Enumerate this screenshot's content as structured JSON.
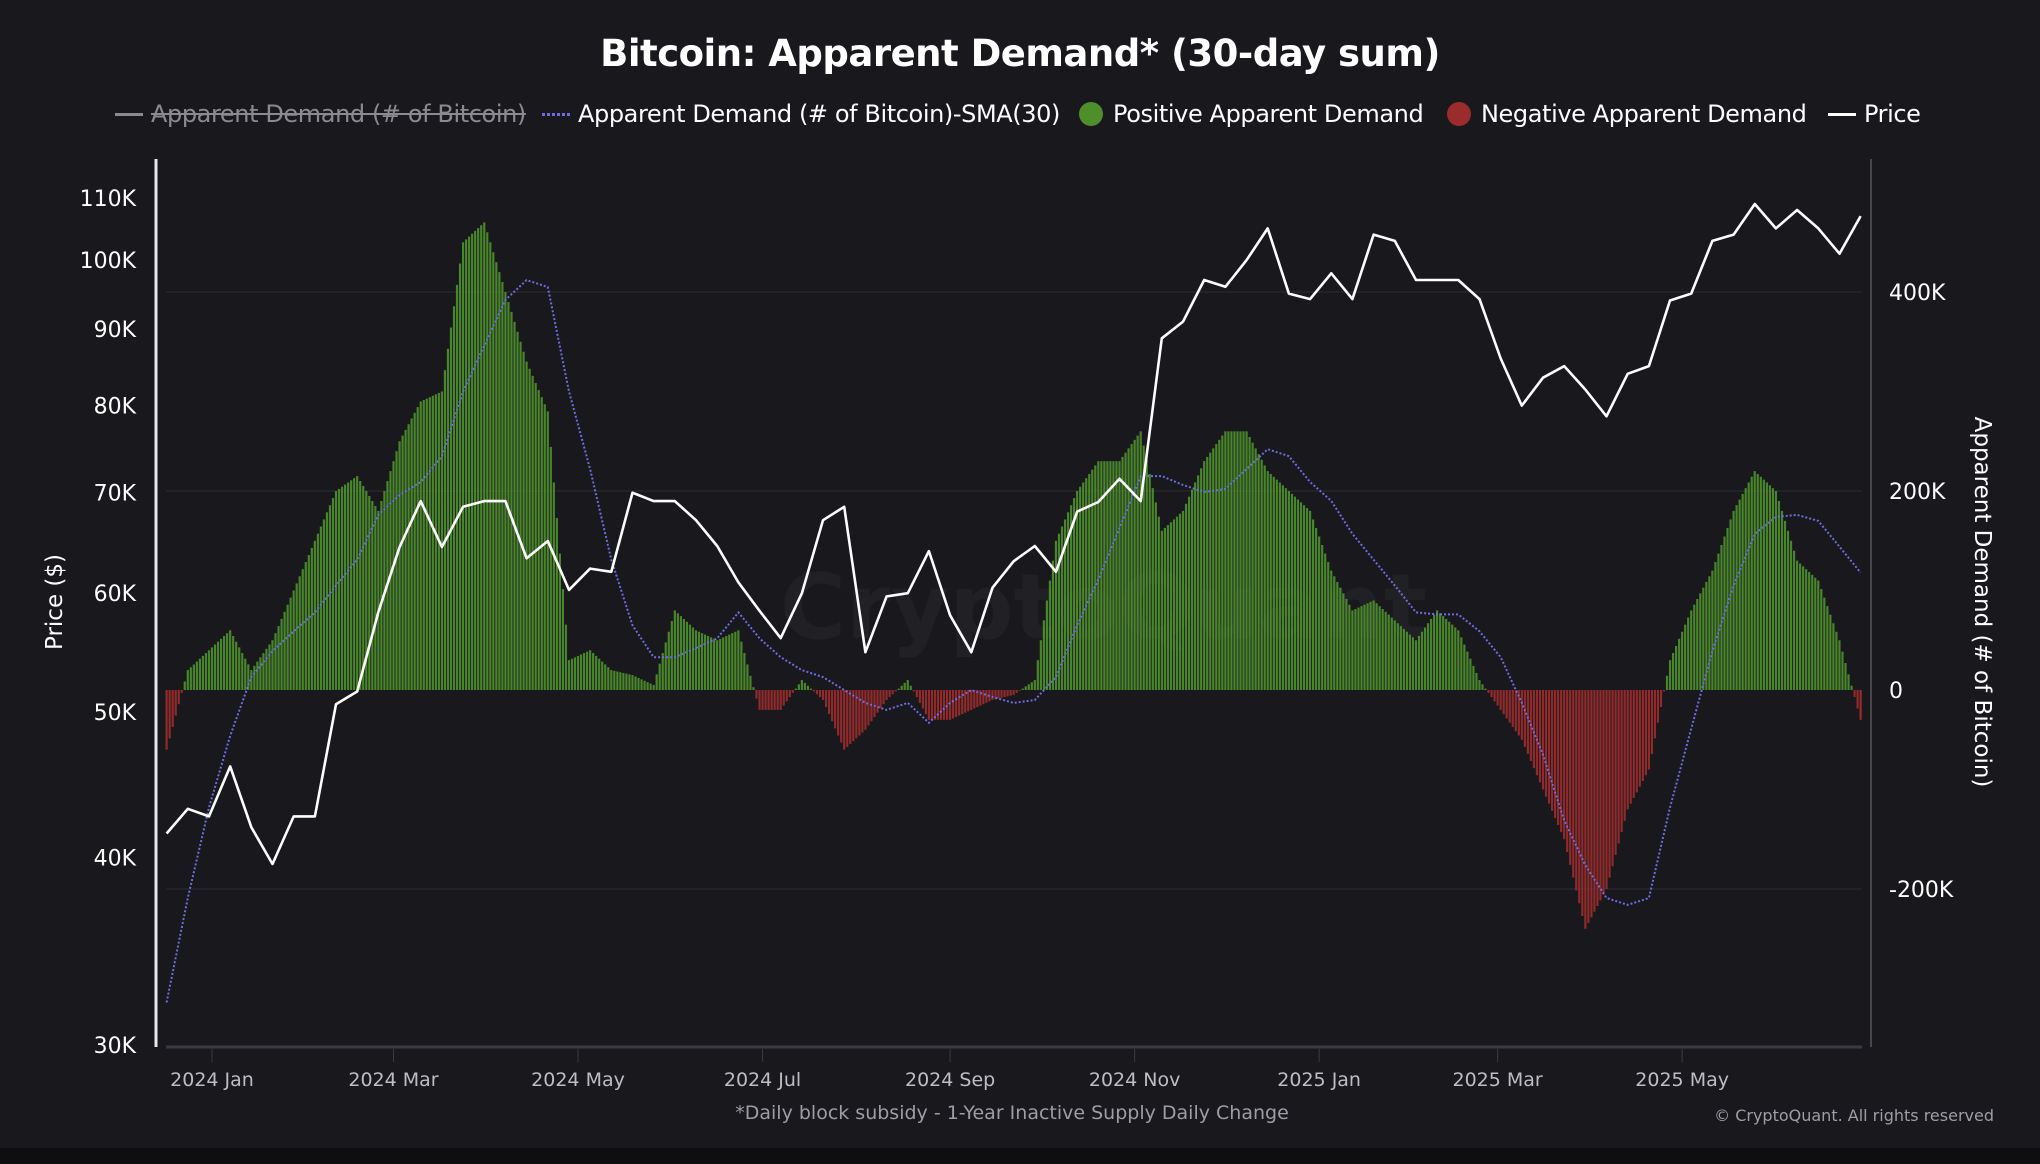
{
  "chart_data": {
    "type": "bar+line",
    "title": "Bitcoin: Apparent Demand* (30-day sum)",
    "footnote": "*Daily block subsidy - 1-Year Inactive Supply Daily Change",
    "copyright": "© CryptoQuant. All rights reserved",
    "watermark": "CryptoQuant",
    "legend": [
      {
        "label": "Apparent Demand (# of Bitcoin)",
        "hidden": true,
        "color": "#8a8a90"
      },
      {
        "label": "Apparent Demand (# of Bitcoin)-SMA(30)",
        "color": "#6d6de0"
      },
      {
        "label": "Positive Apparent Demand",
        "color": "#4e8f2b"
      },
      {
        "label": "Negative Apparent Demand",
        "color": "#9b2c2c"
      },
      {
        "label": "Price",
        "color": "#ffffff"
      }
    ],
    "legend_position": "top",
    "y_left": {
      "label": "Price ($)",
      "scale": "log",
      "range": [
        30000,
        115000
      ],
      "ticks": [
        30000,
        40000,
        50000,
        60000,
        70000,
        80000,
        90000,
        100000,
        110000
      ],
      "tick_labels": [
        "30K",
        "40K",
        "50K",
        "60K",
        "70K",
        "80K",
        "90K",
        "100K",
        "110K"
      ]
    },
    "y_right": {
      "label": "Apparent Demand (# of Bitcoin)",
      "scale": "linear",
      "range": [
        -345000,
        570000
      ],
      "ticks": [
        -200000,
        0,
        200000,
        400000
      ],
      "tick_labels": [
        "-200K",
        "0",
        "200K",
        "400K"
      ],
      "grid": true
    },
    "x_axis": {
      "range": [
        "2023-12-17",
        "2025-06-29"
      ],
      "ticks": [
        "2024-01-01",
        "2024-03-01",
        "2024-05-01",
        "2024-07-01",
        "2024-09-01",
        "2024-11-01",
        "2025-01-01",
        "2025-03-01",
        "2025-05-01"
      ],
      "tick_labels": [
        "2024 Jan",
        "2024 Mar",
        "2024 May",
        "2024 Jul",
        "2024 Sep",
        "2024 Nov",
        "2025 Jan",
        "2025 Mar",
        "2025 May"
      ]
    },
    "dates": [
      "2023-12-17",
      "2023-12-24",
      "2023-12-31",
      "2024-01-07",
      "2024-01-14",
      "2024-01-21",
      "2024-01-28",
      "2024-02-04",
      "2024-02-11",
      "2024-02-18",
      "2024-02-25",
      "2024-03-03",
      "2024-03-10",
      "2024-03-17",
      "2024-03-24",
      "2024-03-31",
      "2024-04-07",
      "2024-04-14",
      "2024-04-21",
      "2024-04-28",
      "2024-05-05",
      "2024-05-12",
      "2024-05-19",
      "2024-05-26",
      "2024-06-02",
      "2024-06-09",
      "2024-06-16",
      "2024-06-23",
      "2024-06-30",
      "2024-07-07",
      "2024-07-14",
      "2024-07-21",
      "2024-07-28",
      "2024-08-04",
      "2024-08-11",
      "2024-08-18",
      "2024-08-25",
      "2024-09-01",
      "2024-09-08",
      "2024-09-15",
      "2024-09-22",
      "2024-09-29",
      "2024-10-06",
      "2024-10-13",
      "2024-10-20",
      "2024-10-27",
      "2024-11-03",
      "2024-11-10",
      "2024-11-17",
      "2024-11-24",
      "2024-12-01",
      "2024-12-08",
      "2024-12-15",
      "2024-12-22",
      "2024-12-29",
      "2025-01-05",
      "2025-01-12",
      "2025-01-19",
      "2025-01-26",
      "2025-02-02",
      "2025-02-09",
      "2025-02-16",
      "2025-02-23",
      "2025-03-02",
      "2025-03-09",
      "2025-03-16",
      "2025-03-23",
      "2025-03-30",
      "2025-04-06",
      "2025-04-13",
      "2025-04-20",
      "2025-04-27",
      "2025-05-04",
      "2025-05-11",
      "2025-05-18",
      "2025-05-25",
      "2025-06-01",
      "2025-06-08",
      "2025-06-15",
      "2025-06-22",
      "2025-06-29"
    ],
    "series": [
      {
        "name": "Price",
        "axis": "left",
        "type": "line",
        "values": [
          41500,
          43100,
          42600,
          46000,
          41900,
          39600,
          42600,
          42600,
          50600,
          51600,
          58300,
          64400,
          69100,
          64400,
          68500,
          69100,
          69100,
          63300,
          65000,
          60300,
          62300,
          62000,
          70000,
          69100,
          69100,
          67100,
          64500,
          61000,
          58400,
          56000,
          60000,
          67100,
          68500,
          54800,
          59700,
          60000,
          64000,
          58000,
          54800,
          60500,
          63000,
          64500,
          62000,
          68000,
          69000,
          71500,
          69100,
          88700,
          91000,
          97000,
          96000,
          100000,
          105000,
          95000,
          94200,
          98000,
          94200,
          104000,
          103000,
          97000,
          97000,
          97000,
          94200,
          86000,
          80000,
          83500,
          85000,
          82000,
          78700,
          84000,
          85000,
          94000,
          95000,
          103000,
          104000,
          109000,
          105000,
          108000,
          105000,
          101000,
          107000
        ]
      },
      {
        "name": "Apparent Demand (# of Bitcoin)",
        "axis": "right",
        "type": "bar",
        "values": [
          -60000,
          20000,
          40000,
          60000,
          20000,
          50000,
          100000,
          150000,
          200000,
          215000,
          180000,
          250000,
          290000,
          300000,
          450000,
          470000,
          400000,
          330000,
          280000,
          30000,
          40000,
          20000,
          15000,
          5000,
          80000,
          60000,
          50000,
          60000,
          -20000,
          -20000,
          10000,
          -10000,
          -60000,
          -40000,
          -10000,
          10000,
          -30000,
          -30000,
          -20000,
          -10000,
          -5000,
          10000,
          150000,
          200000,
          230000,
          230000,
          260000,
          160000,
          180000,
          230000,
          260000,
          260000,
          220000,
          200000,
          180000,
          120000,
          80000,
          90000,
          70000,
          50000,
          80000,
          60000,
          10000,
          -20000,
          -50000,
          -100000,
          -150000,
          -240000,
          -200000,
          -120000,
          -80000,
          30000,
          80000,
          120000,
          180000,
          220000,
          200000,
          130000,
          110000,
          50000,
          -30000
        ]
      },
      {
        "name": "Apparent Demand (# of Bitcoin)-SMA(30)",
        "axis": "right",
        "type": "line",
        "values": [
          -314000,
          -209000,
          -118000,
          -46000,
          13000,
          39000,
          59000,
          78000,
          105000,
          131000,
          176000,
          196000,
          209000,
          235000,
          300000,
          346000,
          392000,
          412000,
          405000,
          300000,
          222000,
          131000,
          65000,
          33000,
          33000,
          42000,
          52000,
          78000,
          52000,
          33000,
          20000,
          13000,
          0,
          -13000,
          -20000,
          -13000,
          -33000,
          -13000,
          0,
          -7000,
          -13000,
          -10000,
          13000,
          65000,
          111000,
          163000,
          215000,
          215000,
          206000,
          199000,
          202000,
          222000,
          242000,
          235000,
          209000,
          190000,
          157000,
          131000,
          105000,
          78000,
          76000,
          76000,
          59000,
          33000,
          -13000,
          -65000,
          -131000,
          -176000,
          -209000,
          -216000,
          -209000,
          -118000,
          -39000,
          39000,
          105000,
          157000,
          174000,
          176000,
          170000,
          144000,
          118000
        ]
      }
    ]
  }
}
